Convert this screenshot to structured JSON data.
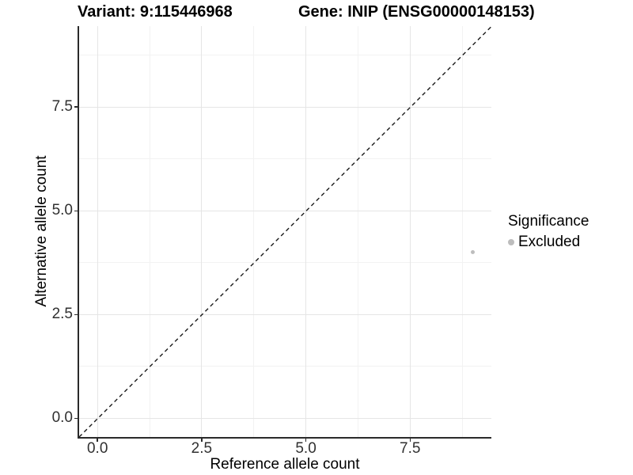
{
  "chart_data": {
    "type": "scatter",
    "title_left": "Variant: 9:115446968",
    "title_right": "Gene: INIP (ENSG00000148153)",
    "xlabel": "Reference allele count",
    "ylabel": "Alternative allele count",
    "xlim": [
      -0.45,
      9.45
    ],
    "ylim": [
      -0.45,
      9.45
    ],
    "x_major_ticks": [
      0.0,
      2.5,
      5.0,
      7.5
    ],
    "x_tick_labels": [
      "0.0",
      "2.5",
      "5.0",
      "7.5"
    ],
    "x_minor_ticks": [
      1.25,
      3.75,
      6.25,
      8.75
    ],
    "y_major_ticks": [
      0.0,
      2.5,
      5.0,
      7.5
    ],
    "y_tick_labels": [
      "0.0",
      "2.5",
      "5.0",
      "7.5"
    ],
    "y_minor_ticks": [
      1.25,
      3.75,
      6.25,
      8.75
    ],
    "grid": "major+minor",
    "series": [
      {
        "name": "Excluded",
        "color": "#bdbdbd",
        "points": [
          {
            "x": 9,
            "y": 4
          }
        ]
      }
    ],
    "reference_line": {
      "type": "identity",
      "equation": "y = x",
      "style": "dashed",
      "color": "#1a1a1a",
      "from": [
        -0.45,
        -0.45
      ],
      "to": [
        9.45,
        9.45
      ]
    },
    "legend": {
      "title": "Significance",
      "position": "right",
      "entries": [
        {
          "label": "Excluded",
          "color": "#bdbdbd"
        }
      ]
    },
    "colors": {
      "background": "#ffffff",
      "grid_major": "#e5e5e5",
      "grid_minor": "#f2f2f2",
      "axis_line": "#2a2a2a",
      "tick_text": "#303030",
      "point": "#bdbdbd"
    }
  }
}
